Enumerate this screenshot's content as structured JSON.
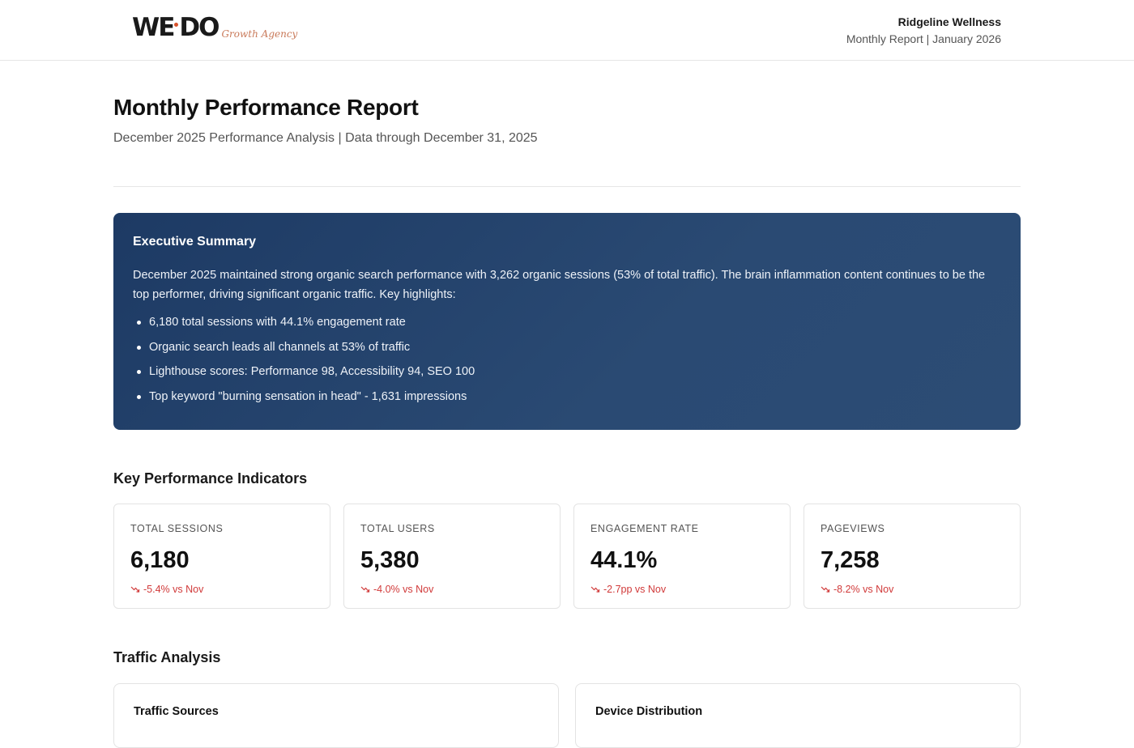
{
  "header": {
    "logo_mark_left": "WE",
    "logo_mark_right": "DO",
    "logo_tagline": "Growth Agency",
    "client_name": "Ridgeline Wellness",
    "report_meta": "Monthly Report | January 2026"
  },
  "title": {
    "heading": "Monthly Performance Report",
    "subheading": "December 2025 Performance Analysis | Data through December 31, 2025"
  },
  "executive_summary": {
    "title": "Executive Summary",
    "body": "December 2025 maintained strong organic search performance with 3,262 organic sessions (53% of total traffic). The brain inflammation content continues to be the top performer, driving significant organic traffic. Key highlights:",
    "highlights": [
      "6,180 total sessions with 44.1% engagement rate",
      "Organic search leads all channels at 53% of traffic",
      "Lighthouse scores: Performance 98, Accessibility 94, SEO 100",
      "Top keyword \"burning sensation in head\" - 1,631 impressions"
    ]
  },
  "kpi": {
    "heading": "Key Performance Indicators",
    "cards": [
      {
        "label": "TOTAL SESSIONS",
        "value": "6,180",
        "delta": "-5.4% vs Nov"
      },
      {
        "label": "TOTAL USERS",
        "value": "5,380",
        "delta": "-4.0% vs Nov"
      },
      {
        "label": "ENGAGEMENT RATE",
        "value": "44.1%",
        "delta": "-2.7pp vs Nov"
      },
      {
        "label": "PAGEVIEWS",
        "value": "7,258",
        "delta": "-8.2% vs Nov"
      }
    ],
    "negative_color": "#d13a3a"
  },
  "traffic": {
    "heading": "Traffic Analysis",
    "panels": [
      {
        "title": "Traffic Sources"
      },
      {
        "title": "Device Distribution"
      }
    ]
  },
  "colors": {
    "summary_bg": "#1d3a64",
    "logo_accent": "#d9532c"
  }
}
